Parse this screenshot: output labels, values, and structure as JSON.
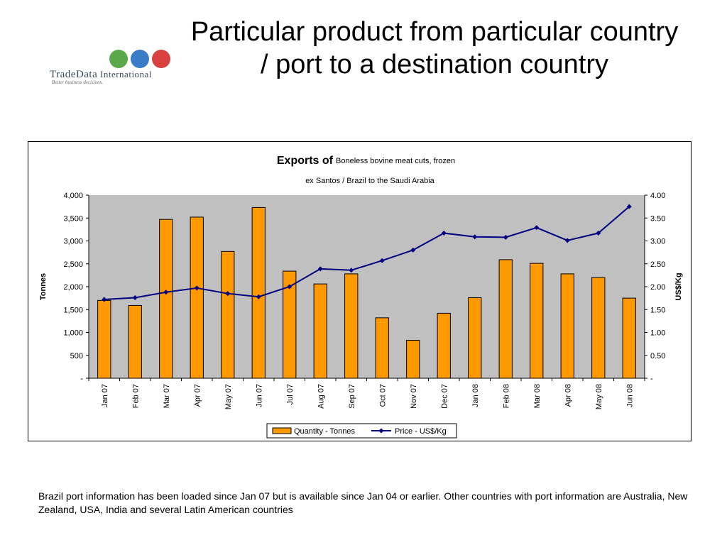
{
  "slide": {
    "title": "Particular product from particular country / port to a destination country",
    "footnote": "Brazil port information has been loaded since Jan 07 but is available since Jan 04 or earlier. Other countries with port information are Australia, New Zealand, USA, India and several Latin American countries"
  },
  "logo": {
    "brand_main": "TradeData",
    "brand_second": "International",
    "tagline": "Better business decisions."
  },
  "colors": {
    "bar_fill": "#FF9900",
    "bar_stroke": "#000000",
    "line": "#000080",
    "plot_bg": "#C0C0C0",
    "globe_green": "#5aa84a",
    "globe_blue": "#3a7cc8",
    "globe_red": "#d94040"
  },
  "chart_data": {
    "type": "bar",
    "title": "Exports of",
    "subtitle_product": "Boneless bovine meat cuts, frozen",
    "subtitle_route": "ex Santos / Brazil to the Saudi Arabia",
    "ylabel": "Tonnes",
    "y2label": "US$/Kg",
    "ylim": [
      0,
      4000
    ],
    "y2lim": [
      0,
      4.0
    ],
    "y_ticks": [
      "-",
      "500",
      "1,000",
      "1,500",
      "2,000",
      "2,500",
      "3,000",
      "3,500",
      "4,000"
    ],
    "y2_ticks": [
      "-",
      "0.50",
      "1.00",
      "1.50",
      "2.00",
      "2.50",
      "3.00",
      "3.50",
      "4.00"
    ],
    "grid": false,
    "legend_position": "bottom",
    "categories": [
      "Jan 07",
      "Feb 07",
      "Mar 07",
      "Apr 07",
      "May 07",
      "Jun 07",
      "Jul 07",
      "Aug 07",
      "Sep 07",
      "Oct 07",
      "Nov 07",
      "Dec 07",
      "Jan 08",
      "Feb 08",
      "Mar 08",
      "Apr 08",
      "May 08",
      "Jun 08"
    ],
    "series": [
      {
        "name": "Quantity - Tonnes",
        "type": "bar",
        "axis": "left",
        "values": [
          1700,
          1590,
          3470,
          3520,
          2770,
          3730,
          2340,
          2060,
          2280,
          1320,
          830,
          1420,
          1760,
          2590,
          2510,
          2280,
          2200,
          1750
        ]
      },
      {
        "name": "Price - US$/Kg",
        "type": "line",
        "axis": "right",
        "values": [
          1.72,
          1.76,
          1.88,
          1.97,
          1.85,
          1.78,
          2.0,
          2.39,
          2.36,
          2.57,
          2.8,
          3.17,
          3.09,
          3.08,
          3.29,
          3.01,
          3.17,
          3.75
        ]
      }
    ]
  }
}
